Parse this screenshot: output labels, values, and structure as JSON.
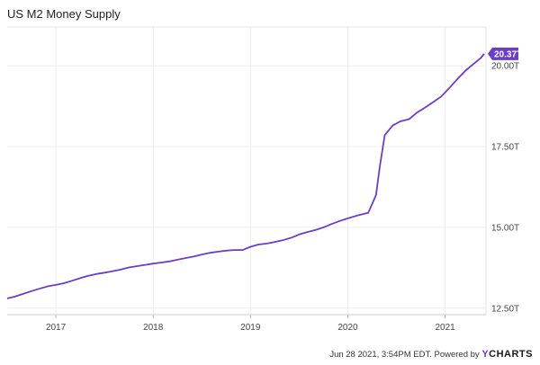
{
  "chart_data": {
    "type": "line",
    "title": "US M2 Money Supply",
    "x_ticks": [
      "2017",
      "2018",
      "2019",
      "2020",
      "2021"
    ],
    "y_ticks": [
      "12.50T",
      "15.00T",
      "17.50T",
      "20.00T"
    ],
    "y_tick_values": [
      12.5,
      15.0,
      17.5,
      20.0
    ],
    "ylim": [
      12.3,
      21.2
    ],
    "xlim": [
      2016.5,
      2021.42
    ],
    "grid": true,
    "series": [
      {
        "color": "#6b3fc4",
        "points": [
          [
            2016.5,
            12.8
          ],
          [
            2016.58,
            12.86
          ],
          [
            2016.67,
            12.95
          ],
          [
            2016.75,
            13.03
          ],
          [
            2016.83,
            13.1
          ],
          [
            2016.92,
            13.18
          ],
          [
            2017.0,
            13.22
          ],
          [
            2017.08,
            13.27
          ],
          [
            2017.17,
            13.35
          ],
          [
            2017.25,
            13.43
          ],
          [
            2017.33,
            13.5
          ],
          [
            2017.42,
            13.56
          ],
          [
            2017.5,
            13.6
          ],
          [
            2017.58,
            13.64
          ],
          [
            2017.67,
            13.7
          ],
          [
            2017.75,
            13.76
          ],
          [
            2017.83,
            13.8
          ],
          [
            2017.92,
            13.84
          ],
          [
            2018.0,
            13.88
          ],
          [
            2018.08,
            13.91
          ],
          [
            2018.17,
            13.95
          ],
          [
            2018.25,
            14.0
          ],
          [
            2018.33,
            14.05
          ],
          [
            2018.42,
            14.1
          ],
          [
            2018.5,
            14.16
          ],
          [
            2018.58,
            14.21
          ],
          [
            2018.67,
            14.25
          ],
          [
            2018.75,
            14.28
          ],
          [
            2018.83,
            14.3
          ],
          [
            2018.92,
            14.3
          ],
          [
            2019.0,
            14.4
          ],
          [
            2019.08,
            14.47
          ],
          [
            2019.17,
            14.5
          ],
          [
            2019.25,
            14.55
          ],
          [
            2019.33,
            14.6
          ],
          [
            2019.42,
            14.68
          ],
          [
            2019.5,
            14.78
          ],
          [
            2019.58,
            14.85
          ],
          [
            2019.67,
            14.92
          ],
          [
            2019.75,
            15.0
          ],
          [
            2019.83,
            15.1
          ],
          [
            2019.92,
            15.2
          ],
          [
            2020.0,
            15.28
          ],
          [
            2020.08,
            15.35
          ],
          [
            2020.17,
            15.42
          ],
          [
            2020.21,
            15.45
          ],
          [
            2020.29,
            16.0
          ],
          [
            2020.33,
            16.9
          ],
          [
            2020.38,
            17.85
          ],
          [
            2020.46,
            18.15
          ],
          [
            2020.54,
            18.28
          ],
          [
            2020.63,
            18.35
          ],
          [
            2020.71,
            18.55
          ],
          [
            2020.79,
            18.7
          ],
          [
            2020.88,
            18.88
          ],
          [
            2020.96,
            19.05
          ],
          [
            2021.04,
            19.3
          ],
          [
            2021.13,
            19.6
          ],
          [
            2021.21,
            19.85
          ],
          [
            2021.29,
            20.05
          ],
          [
            2021.37,
            20.25
          ],
          [
            2021.4,
            20.37
          ]
        ]
      }
    ],
    "last_value_label": "20.37T"
  },
  "footer": {
    "timestamp": "Jun 28 2021, 3:54PM EDT.",
    "powered_by": "Powered by",
    "brand": "YCHARTS"
  }
}
